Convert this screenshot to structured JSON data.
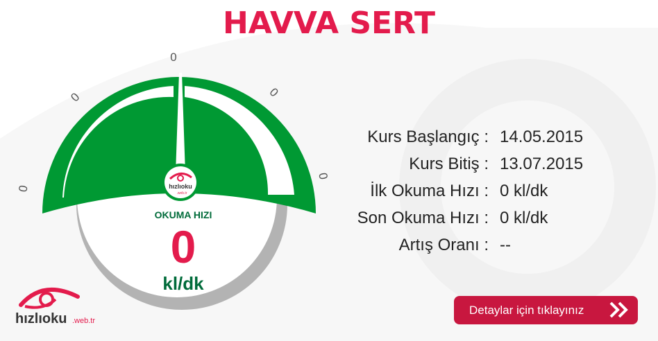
{
  "header": {
    "title": "HAVVA SERT"
  },
  "gauge": {
    "scale_labels": [
      "0",
      "0",
      "0",
      "0",
      "0"
    ],
    "label": "OKUMA HIZI",
    "value": "0",
    "unit": "kl/dk",
    "needle_value": 0,
    "logo_text": "hızlıoku",
    "logo_sub": ".web.tr"
  },
  "info": {
    "rows": [
      {
        "key": "Kurs Başlangıç :",
        "value": "14.05.2015"
      },
      {
        "key": "Kurs Bitiş :",
        "value": "13.07.2015"
      },
      {
        "key": "İlk Okuma Hızı :",
        "value": "0 kl/dk"
      },
      {
        "key": "Son Okuma Hızı :",
        "value": "0 kl/dk"
      },
      {
        "key": "Artış Oranı :",
        "value": "--"
      }
    ]
  },
  "cta": {
    "label": "Detaylar için tıklayınız",
    "icon": "double-chevron-right-icon"
  },
  "brand": {
    "logo_text": "hızlıoku",
    "logo_sub": ".web.tr"
  },
  "colors": {
    "accent": "#e31b4c",
    "green": "#009933",
    "button": "#c8173f",
    "dark_green": "#006b3a"
  }
}
